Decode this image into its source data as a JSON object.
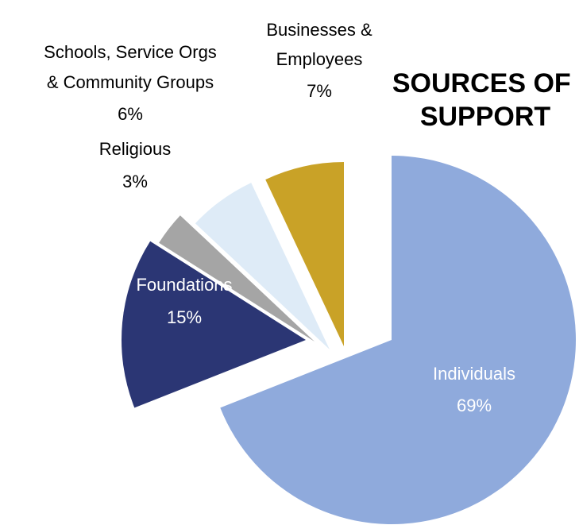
{
  "chart_data": {
    "type": "pie",
    "title_lines": [
      "SOURCES OF",
      "SUPPORT"
    ],
    "legend": "none",
    "slices": [
      {
        "name": "Individuals",
        "value": 69,
        "percent_label": "69%",
        "label_lines": [
          "Individuals",
          "69%"
        ],
        "color": "#8FAADC",
        "label_color": "#FFFFFF"
      },
      {
        "name": "Foundations",
        "value": 15,
        "percent_label": "15%",
        "label_lines": [
          "Foundations",
          "15%"
        ],
        "color": "#2B3674",
        "label_color": "#FFFFFF"
      },
      {
        "name": "Religious",
        "value": 3,
        "percent_label": "3%",
        "label_lines": [
          "Religious",
          "3%"
        ],
        "color": "#A5A5A5",
        "label_color": "#000000"
      },
      {
        "name": "Schools, Service Orgs & Community Groups",
        "value": 6,
        "percent_label": "6%",
        "label_lines": [
          "Schools, Service Orgs",
          "& Community Groups",
          "6%"
        ],
        "color": "#DEEBF7",
        "label_color": "#000000"
      },
      {
        "name": "Businesses & Employees",
        "value": 7,
        "percent_label": "7%",
        "label_lines": [
          "Businesses &",
          "Employees",
          "7%"
        ],
        "color": "#C9A227",
        "label_color": "#000000"
      }
    ]
  }
}
